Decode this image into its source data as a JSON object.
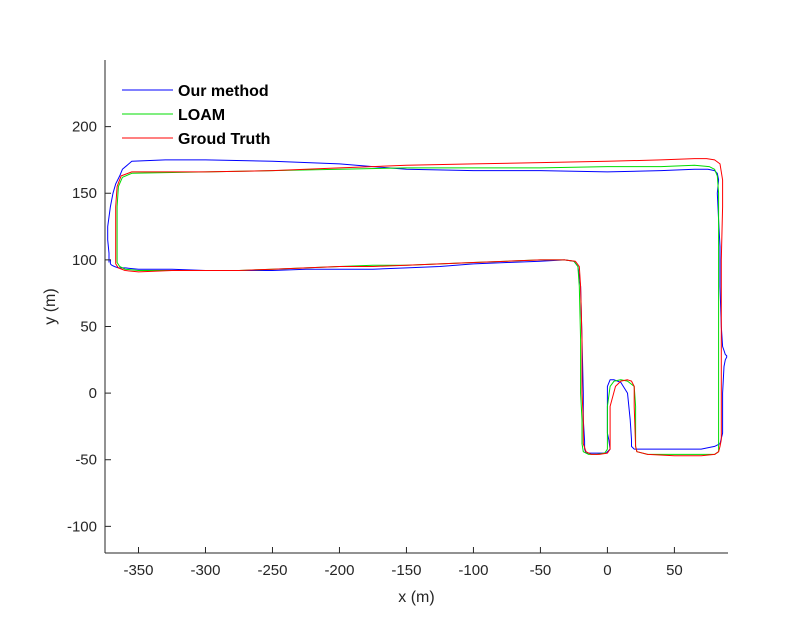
{
  "chart_data": {
    "type": "line",
    "xlabel": "x (m)",
    "ylabel": "y (m)",
    "xlim": [
      -375,
      90
    ],
    "ylim": [
      -120,
      250
    ],
    "xticks": [
      -350,
      -300,
      -250,
      -200,
      -150,
      -100,
      -50,
      0,
      50
    ],
    "yticks": [
      -100,
      -50,
      0,
      50,
      100,
      150,
      200
    ],
    "grid": false,
    "legend_position": "top-left",
    "series": [
      {
        "name": "Our method",
        "color": "#0000ff",
        "x": [
          -372,
          -372,
          -373,
          -373,
          -371,
          -369,
          -367,
          -364,
          -362,
          -355,
          -330,
          -300,
          -250,
          -200,
          -150,
          -100,
          -50,
          0,
          40,
          65,
          75,
          80,
          82,
          83,
          82,
          83,
          84,
          84,
          85,
          86,
          87,
          88,
          89,
          89,
          88,
          87,
          86,
          86,
          84,
          80,
          70,
          50,
          30,
          20,
          18,
          18,
          17,
          15,
          10,
          5,
          2,
          0,
          0,
          0,
          1,
          2,
          -1,
          -6,
          -12,
          -16,
          -17,
          -17,
          -18,
          -18,
          -19,
          -20,
          -22,
          -25,
          -32,
          -50,
          -75,
          -100,
          -125,
          -150,
          -175,
          -200,
          -225,
          -250,
          -275,
          -300,
          -325,
          -350,
          -360,
          -365,
          -368,
          -370,
          -371,
          -371,
          -371,
          -371,
          -371
        ],
        "y": [
          98,
          105,
          115,
          125,
          140,
          150,
          157,
          163,
          168,
          174,
          175,
          175,
          174,
          172,
          168,
          167,
          167,
          166,
          167,
          168,
          168,
          167,
          165,
          160,
          150,
          130,
          110,
          80,
          50,
          35,
          32,
          29,
          28,
          27,
          25,
          20,
          0,
          -30,
          -38,
          -40,
          -42,
          -42,
          -42,
          -42,
          -40,
          -35,
          -20,
          0,
          8,
          10,
          10,
          5,
          -10,
          -30,
          -35,
          -42,
          -45,
          -45,
          -45,
          -45,
          -42,
          -36,
          -20,
          0,
          40,
          80,
          95,
          99,
          100,
          99,
          98,
          97,
          95,
          94,
          93,
          93,
          93,
          92,
          92,
          92,
          93,
          93,
          94,
          94,
          95,
          96,
          97,
          98,
          99,
          100,
          98
        ]
      },
      {
        "name": "LOAM",
        "color": "#00dd00",
        "x": [
          -366,
          -366,
          -366,
          -366,
          -365,
          -362,
          -355,
          -300,
          -250,
          -200,
          -150,
          -100,
          -50,
          0,
          40,
          65,
          76,
          80,
          82,
          83,
          83,
          83,
          83,
          83,
          83,
          83,
          83,
          83,
          80,
          70,
          50,
          30,
          22,
          21,
          21,
          20,
          15,
          10,
          5,
          2,
          0,
          0,
          0,
          0,
          -2,
          -8,
          -14,
          -18,
          -19,
          -19,
          -20,
          -20,
          -21,
          -22,
          -25,
          -32,
          -50,
          -75,
          -100,
          -125,
          -150,
          -175,
          -200,
          -225,
          -250,
          -275,
          -300,
          -325,
          -350,
          -360,
          -364,
          -366,
          -366
        ],
        "y": [
          100,
          110,
          120,
          140,
          155,
          162,
          165,
          166,
          167,
          168,
          169,
          169,
          169,
          170,
          170,
          171,
          170,
          168,
          163,
          150,
          120,
          80,
          40,
          10,
          -20,
          -35,
          -40,
          -44,
          -46,
          -46,
          -46,
          -46,
          -44,
          -40,
          -10,
          5,
          9,
          10,
          9,
          5,
          -10,
          -25,
          -35,
          -42,
          -45,
          -46,
          -46,
          -44,
          -38,
          -20,
          0,
          40,
          80,
          95,
          99,
          100,
          100,
          99,
          98,
          97,
          96,
          96,
          95,
          94,
          93,
          92,
          92,
          92,
          92,
          93,
          95,
          98,
          100
        ]
      },
      {
        "name": "Groud Truth",
        "color": "#ff0000",
        "x": [
          -367,
          -367,
          -367,
          -367,
          -366,
          -363,
          -355,
          -300,
          -250,
          -200,
          -150,
          -100,
          -50,
          0,
          40,
          65,
          74,
          80,
          84,
          86,
          86,
          85,
          85,
          85,
          85,
          85,
          84,
          83,
          80,
          70,
          50,
          30,
          22,
          21,
          20,
          20,
          18,
          15,
          10,
          6,
          2,
          2,
          2,
          2,
          0,
          -6,
          -12,
          -16,
          -18,
          -18,
          -19,
          -19,
          -20,
          -21,
          -24,
          -32,
          -50,
          -75,
          -100,
          -125,
          -150,
          -175,
          -200,
          -225,
          -250,
          -275,
          -300,
          -325,
          -350,
          -360,
          -365,
          -367,
          -367
        ],
        "y": [
          100,
          110,
          125,
          140,
          155,
          163,
          166,
          166,
          167,
          169,
          171,
          172,
          173,
          174,
          175,
          176,
          176,
          175,
          172,
          160,
          140,
          100,
          60,
          20,
          -20,
          -35,
          -40,
          -44,
          -46,
          -47,
          -47,
          -46,
          -44,
          -40,
          -10,
          5,
          9,
          10,
          9,
          5,
          -10,
          -25,
          -35,
          -42,
          -45,
          -46,
          -46,
          -44,
          -38,
          -20,
          0,
          40,
          80,
          95,
          99,
          100,
          100,
          99,
          98,
          97,
          96,
          95,
          95,
          94,
          93,
          92,
          92,
          92,
          91,
          92,
          94,
          97,
          100
        ]
      }
    ]
  }
}
